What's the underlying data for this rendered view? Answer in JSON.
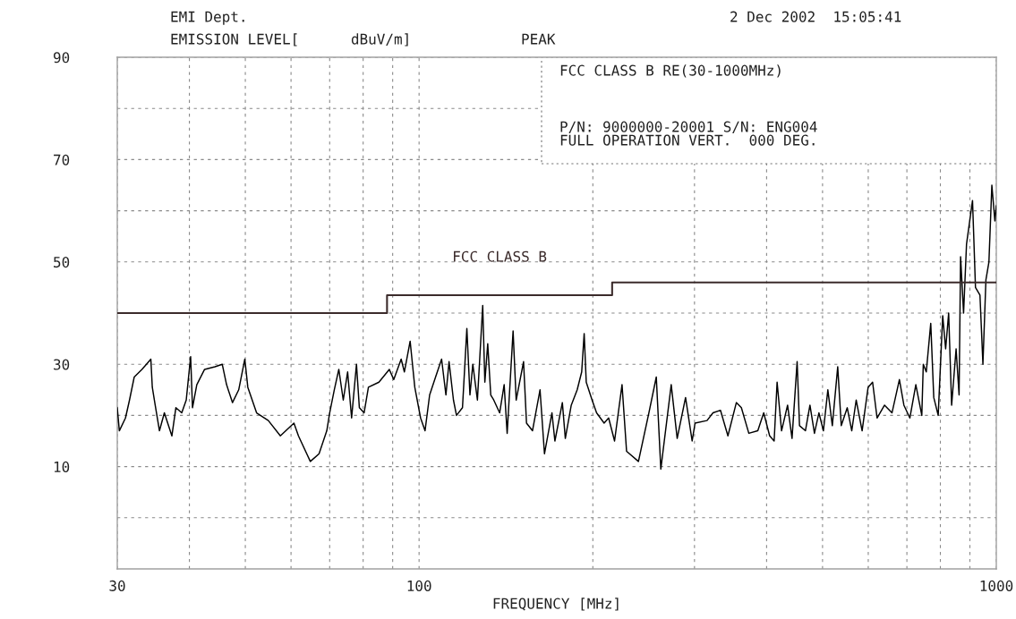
{
  "chart_data": {
    "type": "line",
    "title": "EMI Dept.",
    "ylabel": "EMISSION LEVEL[      dBuV/m]",
    "xlabel": "FREQUENCY [MHz]",
    "annotations": [
      "2 Dec 2002  15:05:41",
      "PEAK",
      "FCC CLASS B RE(30-1000MHz)",
      "P/N: 9000000-20001 S/N: ENG004",
      "FULL OPERATION VERT.  000 DEG."
    ],
    "log": "x",
    "xlim": [
      30,
      1000
    ],
    "xticks": [
      30,
      {
        "value": 40,
        "label": null
      },
      {
        "value": 50,
        "label": null
      },
      {
        "value": 60,
        "label": null
      },
      {
        "value": 70,
        "label": null
      },
      {
        "value": 80,
        "label": null
      },
      {
        "value": 90,
        "label": null
      },
      100,
      {
        "value": 200,
        "label": null
      },
      {
        "value": 300,
        "label": null
      },
      {
        "value": 400,
        "label": null
      },
      {
        "value": 500,
        "label": null
      },
      {
        "value": 600,
        "label": null
      },
      {
        "value": 700,
        "label": null
      },
      {
        "value": 800,
        "label": null
      },
      {
        "value": 900,
        "label": null
      },
      1000
    ],
    "ylim": [
      -10,
      90
    ],
    "yticks": [
      {
        "value": 0,
        "label": null
      },
      10,
      {
        "value": 20,
        "label": null
      },
      30,
      {
        "value": 40,
        "label": null
      },
      50,
      {
        "value": 60,
        "label": null
      },
      70,
      {
        "value": 80,
        "label": null
      },
      90
    ],
    "grid": true,
    "series": [
      {
        "color": "#000000",
        "x": [
          30,
          30.25,
          31,
          31.5,
          32.1,
          33.1,
          33.7,
          34.3,
          34.5,
          34.9,
          35.5,
          36.2,
          37.3,
          37.9,
          38.8,
          39.5,
          40.2,
          40.5,
          41.2,
          42.5,
          44.3,
          45.6,
          46.4,
          47.5,
          48.7,
          49.9,
          50.5,
          52.3,
          54.8,
          57.5,
          60.7,
          61.8,
          64.8,
          67.1,
          69.2,
          70,
          71.3,
          72.6,
          73.9,
          75.2,
          76.4,
          77.9,
          78.8,
          80.3,
          81.7,
          85.2,
          88.8,
          90.4,
          93.1,
          94.3,
          96.5,
          98.3,
          100.6,
          102.4,
          104.3,
          106.8,
          109.4,
          111.3,
          112.7,
          114.7,
          116.1,
          118.9,
          121,
          122.5,
          123.9,
          126.2,
          128.9,
          130,
          131.5,
          133.1,
          134.7,
          137.9,
          140.4,
          142.1,
          145.5,
          147.3,
          151.7,
          153.5,
          157.2,
          162,
          164.9,
          169.9,
          171.9,
          177.1,
          179.2,
          183.5,
          187.9,
          191.3,
          193.2,
          194.8,
          199.4,
          203,
          209.2,
          213,
          218.1,
          224.7,
          228.8,
          239.9,
          250.1,
          257.6,
          262.3,
          273.4,
          280,
          289.5,
          297.2,
          300.7,
          315.4,
          323,
          332.8,
          342.8,
          354.5,
          361.7,
          372.6,
          386.2,
          395.4,
          404.9,
          412.2,
          417.1,
          424.6,
          434.9,
          442.7,
          451.8,
          456.1,
          467,
          475.5,
          484.1,
          492.8,
          501.7,
          510.7,
          519.9,
          531.2,
          538.8,
          551.8,
          561.8,
          571.8,
          585.5,
          599.7,
          610.5,
          621.5,
          640.3,
          659.6,
          679.4,
          691.7,
          708.3,
          725.4,
          742.9,
          747.3,
          756.3,
          769.9,
          779.2,
          793.1,
          807.5,
          817,
          826.9,
          836.8,
          851.8,
          862,
          867.2,
          877.6,
          888,
          909.5,
          920.3,
          936.9,
          948,
          959.4,
          971,
          982.4,
          994.3,
          1000
        ],
        "values": [
          21.5,
          17,
          19.5,
          23,
          27.5,
          29,
          30,
          31,
          25.5,
          22,
          17,
          20.5,
          16,
          21.5,
          20.5,
          23,
          31.5,
          21.5,
          26,
          29,
          29.5,
          30,
          26,
          22.5,
          25,
          31,
          25.5,
          20.5,
          19,
          16,
          18.5,
          16,
          11,
          12.5,
          17,
          20.5,
          25,
          29,
          23,
          28.5,
          19.5,
          30,
          21.5,
          20.5,
          25.5,
          26.5,
          29,
          27,
          31,
          28.5,
          34.5,
          25.5,
          19.5,
          17,
          24,
          27.5,
          31,
          24,
          30.5,
          23,
          20,
          21.5,
          37,
          24,
          30,
          23,
          41.5,
          26.5,
          34,
          24,
          23,
          20.5,
          26,
          16.5,
          36.5,
          23,
          30.5,
          18.5,
          17,
          25,
          12.5,
          20.5,
          15,
          22.5,
          15.5,
          22,
          25,
          28.5,
          36,
          26.5,
          23,
          20.5,
          18.5,
          19.5,
          15,
          26,
          13,
          11,
          20.5,
          27.5,
          9.5,
          26,
          15.5,
          23.5,
          15,
          18.5,
          19,
          20.5,
          21,
          16,
          22.5,
          21.5,
          16.5,
          17,
          20.5,
          16,
          15,
          26.5,
          17,
          22,
          15.5,
          30.5,
          18,
          17,
          22,
          16.5,
          20.5,
          17,
          25,
          18,
          29.5,
          18,
          21.5,
          17,
          23,
          17,
          25.5,
          26.5,
          19.5,
          22,
          20.5,
          27,
          22,
          19.5,
          26,
          20,
          30,
          28.5,
          38,
          23.5,
          20,
          39.5,
          33,
          40,
          22,
          33,
          24,
          51,
          40,
          53.5,
          62,
          45,
          43.5,
          30,
          46.5,
          50,
          65,
          58,
          61
        ]
      },
      {
        "name": "FCC CLASS B",
        "color": "#3b2b2b",
        "x": [
          30,
          88,
          88,
          216,
          216,
          1000
        ],
        "values": [
          40,
          40,
          43.5,
          43.5,
          46,
          46
        ]
      }
    ]
  }
}
